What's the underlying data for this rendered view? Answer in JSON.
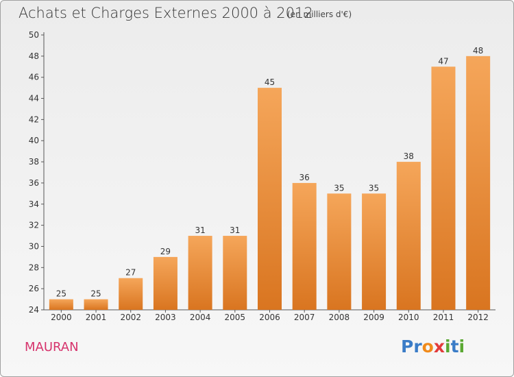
{
  "chart_data": {
    "type": "bar",
    "title": "Achats et Charges Externes 2000 à 2012",
    "subtitle": "(en milliers d'€)",
    "categories": [
      "2000",
      "2001",
      "2002",
      "2003",
      "2004",
      "2005",
      "2006",
      "2007",
      "2008",
      "2009",
      "2010",
      "2011",
      "2012"
    ],
    "values": [
      25,
      25,
      27,
      29,
      31,
      31,
      45,
      36,
      35,
      35,
      38,
      47,
      48
    ],
    "ylim": [
      24,
      50
    ],
    "yticks": [
      24,
      26,
      28,
      30,
      32,
      34,
      36,
      38,
      40,
      42,
      44,
      46,
      48,
      50
    ],
    "grid": false,
    "bar_color_top": "#f5a65a",
    "bar_color_bottom": "#d97520"
  },
  "footer": {
    "town": "MAURAN",
    "town_color": "#d6336c",
    "logo_letters": [
      {
        "ch": "P",
        "color": "#3a7cc7"
      },
      {
        "ch": "r",
        "color": "#3a7cc7"
      },
      {
        "ch": "o",
        "color": "#f08a1a"
      },
      {
        "ch": "x",
        "color": "#e23b3b"
      },
      {
        "ch": "i",
        "color": "#5aa832"
      },
      {
        "ch": "t",
        "color": "#3a7cc7"
      },
      {
        "ch": "i",
        "color": "#5aa832"
      }
    ]
  }
}
